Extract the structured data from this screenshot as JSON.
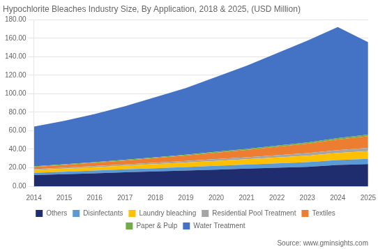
{
  "chart_data": {
    "type": "area",
    "title": "Hypochlorite Bleaches Industry Size, By Application, 2018 & 2025, (USD Million)",
    "annotation": "Source: www.gminsights.com",
    "x": [
      2014,
      2015,
      2016,
      2017,
      2018,
      2019,
      2020,
      2021,
      2022,
      2023,
      2024,
      2025
    ],
    "series": [
      {
        "name": "Others",
        "color": "#1f2d6e",
        "values": [
          12,
          13,
          14,
          15,
          16,
          17,
          18,
          19,
          20,
          21,
          23,
          24
        ]
      },
      {
        "name": "Disinfectants",
        "color": "#5b9bd5",
        "values": [
          2.5,
          2.7,
          3.0,
          3.2,
          3.5,
          3.8,
          4.1,
          4.4,
          4.7,
          5.0,
          5.3,
          5.6
        ]
      },
      {
        "name": "Laundry bleaching",
        "color": "#ffc000",
        "values": [
          3.0,
          3.3,
          3.6,
          4.0,
          4.4,
          4.8,
          5.3,
          5.8,
          6.4,
          7.0,
          7.7,
          8.4
        ]
      },
      {
        "name": "Residential Pool Treatment",
        "color": "#a5a5a5",
        "values": [
          1.0,
          1.1,
          1.3,
          1.4,
          1.6,
          1.8,
          2.0,
          2.2,
          2.5,
          2.8,
          3.1,
          3.4
        ]
      },
      {
        "name": "Textiles",
        "color": "#ed7d31",
        "values": [
          2.5,
          3.0,
          3.5,
          4.2,
          5.0,
          5.8,
          6.8,
          7.8,
          9.0,
          10.2,
          11.5,
          12.8
        ]
      },
      {
        "name": "Paper & Pulp",
        "color": "#70ad47",
        "values": [
          0.5,
          0.6,
          0.7,
          0.8,
          0.9,
          1.0,
          1.1,
          1.2,
          1.3,
          1.4,
          1.5,
          1.6
        ]
      },
      {
        "name": "Water Treatment",
        "color": "#4472c4",
        "values": [
          43,
          47,
          52,
          58,
          65,
          72,
          81,
          90,
          100,
          110,
          120,
          100
        ]
      }
    ],
    "xlim": [
      2014,
      2025
    ],
    "xticks": [
      2014,
      2015,
      2016,
      2017,
      2018,
      2019,
      2020,
      2021,
      2022,
      2023,
      2024,
      2025
    ],
    "ylim": [
      0,
      180
    ],
    "yticks": [
      {
        "value": 0,
        "label": "0.00"
      },
      {
        "value": 20,
        "label": "20.00"
      },
      {
        "value": 40,
        "label": "40.00"
      },
      {
        "value": 60,
        "label": "60.00"
      },
      {
        "value": 80,
        "label": "80.00"
      },
      {
        "value": 100,
        "label": "100.00"
      },
      {
        "value": 120,
        "label": "120.00"
      },
      {
        "value": 140,
        "label": "140.00"
      },
      {
        "value": 160,
        "label": "160.00"
      },
      {
        "value": 180,
        "label": "180.00"
      }
    ],
    "stacked": true,
    "grid": true,
    "legend": "bottom"
  }
}
